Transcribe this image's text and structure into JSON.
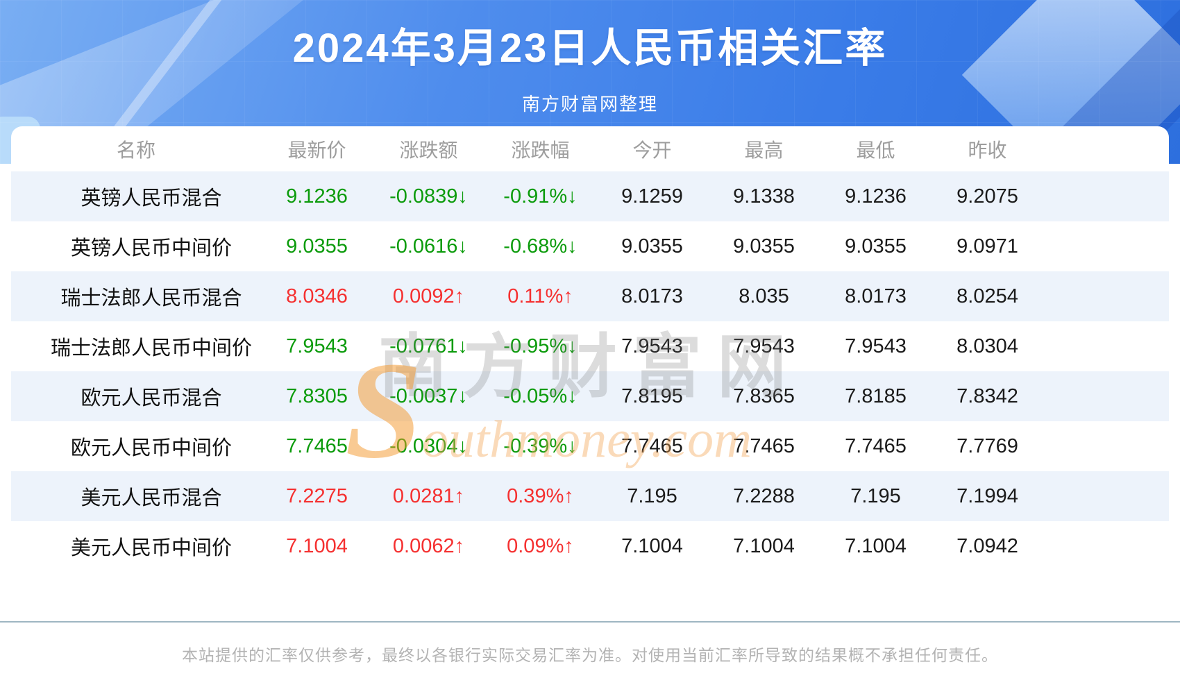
{
  "header": {
    "title": "2024年3月23日人民币相关汇率",
    "subtitle": "南方财富网整理"
  },
  "watermark": {
    "cn": "南方财富网",
    "en": "Southmoney.com"
  },
  "table": {
    "columns": [
      "名称",
      "最新价",
      "涨跌额",
      "涨跌幅",
      "今开",
      "最高",
      "最低",
      "昨收"
    ],
    "rows": [
      {
        "name": "英镑人民币混合",
        "latest": "9.1236",
        "change": "-0.0839",
        "pct": "-0.91%",
        "arrow": "↓",
        "trend": "down",
        "open": "9.1259",
        "high": "9.1338",
        "low": "9.1236",
        "prev": "9.2075"
      },
      {
        "name": "英镑人民币中间价",
        "latest": "9.0355",
        "change": "-0.0616",
        "pct": "-0.68%",
        "arrow": "↓",
        "trend": "down",
        "open": "9.0355",
        "high": "9.0355",
        "low": "9.0355",
        "prev": "9.0971"
      },
      {
        "name": "瑞士法郎人民币混合",
        "latest": "8.0346",
        "change": "0.0092",
        "pct": "0.11%",
        "arrow": "↑",
        "trend": "up",
        "open": "8.0173",
        "high": "8.035",
        "low": "8.0173",
        "prev": "8.0254"
      },
      {
        "name": "瑞士法郎人民币中间价",
        "latest": "7.9543",
        "change": "-0.0761",
        "pct": "-0.95%",
        "arrow": "↓",
        "trend": "down",
        "open": "7.9543",
        "high": "7.9543",
        "low": "7.9543",
        "prev": "8.0304"
      },
      {
        "name": "欧元人民币混合",
        "latest": "7.8305",
        "change": "-0.0037",
        "pct": "-0.05%",
        "arrow": "↓",
        "trend": "down",
        "open": "7.8195",
        "high": "7.8365",
        "low": "7.8185",
        "prev": "7.8342"
      },
      {
        "name": "欧元人民币中间价",
        "latest": "7.7465",
        "change": "-0.0304",
        "pct": "-0.39%",
        "arrow": "↓",
        "trend": "down",
        "open": "7.7465",
        "high": "7.7465",
        "low": "7.7465",
        "prev": "7.7769"
      },
      {
        "name": "美元人民币混合",
        "latest": "7.2275",
        "change": "0.0281",
        "pct": "0.39%",
        "arrow": "↑",
        "trend": "up",
        "open": "7.195",
        "high": "7.2288",
        "low": "7.195",
        "prev": "7.1994"
      },
      {
        "name": "美元人民币中间价",
        "latest": "7.1004",
        "change": "0.0062",
        "pct": "0.09%",
        "arrow": "↑",
        "trend": "up",
        "open": "7.1004",
        "high": "7.1004",
        "low": "7.1004",
        "prev": "7.0942"
      }
    ]
  },
  "footer": {
    "disclaimer": "本站提供的汇率仅供参考，最终以各银行实际交易汇率为准。对使用当前汇率所导致的结果概不承担任何责任。"
  },
  "colors": {
    "up_red": "#f53030",
    "down_green": "#0b9b0b",
    "banner_blue": "#3a7ce8",
    "alt_row": "#edf3fb",
    "header_text_gray": "#9d9d9d"
  },
  "chart_data": {
    "type": "table",
    "title": "2024年3月23日人民币相关汇率",
    "subtitle": "南方财富网整理",
    "columns": [
      "名称",
      "最新价",
      "涨跌额",
      "涨跌幅",
      "今开",
      "最高",
      "最低",
      "昨收"
    ],
    "rows": [
      [
        "英镑人民币混合",
        9.1236,
        -0.0839,
        "-0.91%",
        9.1259,
        9.1338,
        9.1236,
        9.2075
      ],
      [
        "英镑人民币中间价",
        9.0355,
        -0.0616,
        "-0.68%",
        9.0355,
        9.0355,
        9.0355,
        9.0971
      ],
      [
        "瑞士法郎人民币混合",
        8.0346,
        0.0092,
        "0.11%",
        8.0173,
        8.035,
        8.0173,
        8.0254
      ],
      [
        "瑞士法郎人民币中间价",
        7.9543,
        -0.0761,
        "-0.95%",
        7.9543,
        7.9543,
        7.9543,
        8.0304
      ],
      [
        "欧元人民币混合",
        7.8305,
        -0.0037,
        "-0.05%",
        7.8195,
        7.8365,
        7.8185,
        7.8342
      ],
      [
        "欧元人民币中间价",
        7.7465,
        -0.0304,
        "-0.39%",
        7.7465,
        7.7465,
        7.7465,
        7.7769
      ],
      [
        "美元人民币混合",
        7.2275,
        0.0281,
        "0.39%",
        7.195,
        7.2288,
        7.195,
        7.1994
      ],
      [
        "美元人民币中间价",
        7.1004,
        0.0062,
        "0.09%",
        7.1004,
        7.1004,
        7.1004,
        7.0942
      ]
    ],
    "legend_position": "none",
    "grid": false,
    "notes": "red = up (涨), green = down (跌), arrows ↑/↓ follow 涨跌额 and 涨跌幅 values"
  }
}
